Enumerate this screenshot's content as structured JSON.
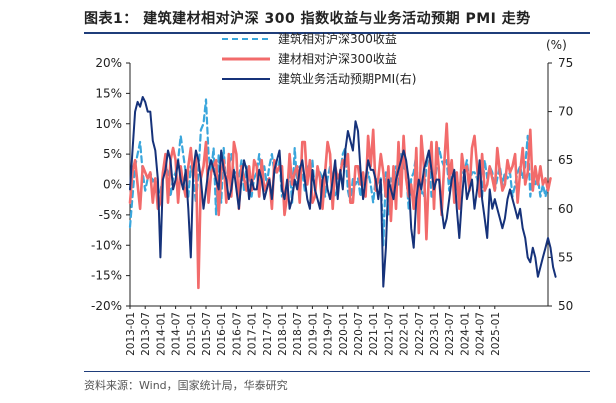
{
  "title": "图表1： 建筑建材相对沪深 300 指数收益与业务活动预期 PMI 走势",
  "source": "资料来源：Wind，国家统计局，华泰研究",
  "colors": {
    "hs300": "#3aa6dc",
    "jiancai": "#f26b6b",
    "pmi": "#16327a",
    "axis": "#222222",
    "rule": "#1f3d7a"
  },
  "chart_data": {
    "type": "line",
    "title": "建筑建材相对沪深 300 指数收益与业务活动预期 PMI 走势",
    "left_axis": {
      "ticks": [
        "20%",
        "15%",
        "10%",
        "5%",
        "0%",
        "-5%",
        "-10%",
        "-15%",
        "-20%"
      ],
      "ylim": [
        -0.2,
        0.2
      ]
    },
    "right_axis": {
      "label": "(%)",
      "ticks": [
        "75",
        "70",
        "65",
        "60",
        "55",
        "50"
      ],
      "ylim": [
        50,
        75
      ]
    },
    "x_labels": [
      "2013-01",
      "2013-07",
      "2014-01",
      "2014-07",
      "2015-01",
      "2015-07",
      "2016-01",
      "2016-07",
      "2017-01",
      "2017-07",
      "2018-01",
      "2018-07",
      "2019-01",
      "2019-07",
      "2020-01",
      "2020-07",
      "2021-01",
      "2021-07",
      "2022-01",
      "2022-07",
      "2023-01",
      "2023-07",
      "2024-01",
      "2024-07",
      "2025-01"
    ],
    "start_month": "2013-01",
    "legend": [
      "建筑相对沪深300收益",
      "建材相对沪深300收益",
      "建筑业务活动预期PMI(右)"
    ],
    "series": [
      {
        "name": "建筑相对沪深300收益",
        "axis": "left",
        "style": "dashed",
        "values": [
          -0.07,
          -0.02,
          0.03,
          0.05,
          0.07,
          0.02,
          -0.01,
          0.01,
          0.02,
          0.005,
          0.01,
          -0.02,
          -0.01,
          0.01,
          0.03,
          0.02,
          -0.02,
          0.01,
          0.02,
          0.04,
          0.08,
          0.05,
          0.02,
          -0.02,
          0.03,
          0.01,
          -0.03,
          0.02,
          0.09,
          0.1,
          0.14,
          0.05,
          0.02,
          0.06,
          -0.05,
          0.05,
          -0.03,
          0.06,
          -0.01,
          0.03,
          0.05,
          0.02,
          0.02,
          0.01,
          0.04,
          -0.01,
          0.03,
          0.02,
          -0.02,
          0.01,
          0.02,
          0.05,
          0.01,
          0.03,
          0.0,
          0.03,
          0.05,
          0.02,
          0.02,
          0.04,
          -0.02,
          -0.01,
          -0.02,
          0.03,
          -0.03,
          0.06,
          0.0,
          0.03,
          0.02,
          -0.01,
          0.03,
          0.02,
          0.04,
          -0.01,
          0.02,
          0.02,
          0.01,
          -0.02,
          0.01,
          0.03,
          0.01,
          -0.02,
          -0.01,
          0.02,
          0.05,
          0.06,
          -0.01,
          -0.03,
          0.01,
          0.0,
          0.01,
          -0.02,
          0.01,
          0.0,
          0.02,
          0.0,
          -0.03,
          0.01,
          0.0,
          0.01,
          -0.1,
          0.02,
          -0.05,
          0.01,
          -0.02,
          0.03,
          0.0,
          0.05,
          0.03,
          0.02,
          -0.04,
          0.01,
          0.02,
          0.05,
          -0.03,
          -0.01,
          -0.02,
          0.03,
          0.05,
          -0.02,
          -0.02,
          0.03,
          0.06,
          0.04,
          0.03,
          0.04,
          -0.01,
          0.03,
          0.02,
          0.01,
          -0.01,
          0.02,
          0.02,
          0.04,
          0.0,
          0.02,
          0.02,
          0.01,
          -0.01,
          -0.02,
          0.04,
          0.01,
          0.03,
          0.02,
          -0.01,
          0.01,
          0.03,
          0.0,
          0.02,
          0.01,
          0.02,
          -0.02,
          0.0,
          0.02,
          0.03,
          0.01,
          0.03,
          0.08,
          -0.02,
          0.02,
          0.0,
          0.01,
          -0.02,
          0.0,
          -0.02,
          0.0
        ]
      },
      {
        "name": "建材相对沪深300收益",
        "axis": "left",
        "style": "solid",
        "values": [
          -0.03,
          0.02,
          0.04,
          0.0,
          -0.04,
          0.03,
          0.02,
          0.01,
          0.02,
          -0.03,
          0.01,
          -0.04,
          -0.03,
          0.02,
          0.05,
          -0.03,
          0.04,
          0.06,
          0.04,
          -0.03,
          0.03,
          0.0,
          -0.02,
          0.03,
          0.06,
          0.01,
          0.05,
          -0.17,
          0.01,
          0.03,
          0.07,
          -0.03,
          0.02,
          0.03,
          0.04,
          -0.05,
          0.02,
          0.04,
          -0.03,
          0.05,
          -0.02,
          0.07,
          0.05,
          -0.04,
          0.03,
          0.01,
          -0.01,
          0.03,
          -0.01,
          0.04,
          0.03,
          -0.02,
          0.04,
          -0.01,
          0.0,
          0.01,
          -0.04,
          0.04,
          0.02,
          0.03,
          0.03,
          -0.05,
          -0.02,
          0.05,
          0.0,
          0.02,
          0.03,
          -0.03,
          0.07,
          0.07,
          0.0,
          0.04,
          -0.03,
          -0.02,
          0.03,
          0.01,
          -0.04,
          0.02,
          0.07,
          0.05,
          -0.04,
          0.03,
          0.01,
          0.02,
          0.04,
          0.03,
          0.05,
          -0.03,
          -0.03,
          0.03,
          0.03,
          0.0,
          0.02,
          -0.02,
          0.08,
          0.03,
          0.09,
          -0.01,
          0.01,
          0.05,
          0.02,
          -0.02,
          0.03,
          -0.06,
          0.03,
          -0.04,
          0.07,
          -0.02,
          0.08,
          0.01,
          -0.02,
          0.0,
          -0.04,
          0.06,
          -0.08,
          0.08,
          0.03,
          -0.09,
          0.02,
          0.07,
          -0.04,
          0.07,
          0.02,
          -0.05,
          0.03,
          0.1,
          0.01,
          0.04,
          -0.03,
          0.02,
          -0.04,
          0.05,
          0.02,
          0.03,
          -0.01,
          0.06,
          0.08,
          0.03,
          -0.02,
          0.05,
          -0.01,
          0.0,
          0.03,
          0.01,
          -0.01,
          0.06,
          0.02,
          -0.01,
          0.0,
          0.04,
          0.02,
          0.03,
          0.05,
          -0.03,
          0.02,
          0.06,
          0.0,
          0.02,
          0.09,
          -0.01,
          0.03,
          0.0,
          0.03,
          0.0,
          0.01,
          -0.01,
          0.01
        ]
      },
      {
        "name": "建筑业务活动预期PMI(右)",
        "axis": "right",
        "style": "solid",
        "values": [
          62.0,
          66.0,
          70.0,
          71.0,
          70.5,
          71.5,
          71.0,
          70.0,
          70.0,
          67.0,
          66.0,
          63.0,
          55.0,
          63.0,
          64.0,
          66.0,
          65.0,
          62.0,
          63.0,
          65.0,
          63.0,
          62.0,
          64.0,
          60.0,
          55.0,
          64.0,
          66.0,
          65.0,
          63.0,
          60.0,
          62.0,
          64.0,
          65.0,
          64.0,
          63.0,
          62.0,
          66.0,
          64.0,
          63.0,
          61.0,
          62.0,
          64.0,
          62.0,
          60.0,
          63.0,
          65.0,
          64.0,
          61.0,
          63.0,
          62.0,
          62.0,
          64.0,
          63.0,
          61.0,
          62.0,
          63.0,
          61.0,
          64.0,
          65.0,
          66.0,
          62.0,
          61.0,
          63.0,
          60.0,
          61.0,
          63.0,
          62.0,
          64.0,
          65.0,
          63.0,
          61.0,
          60.0,
          64.0,
          62.0,
          61.0,
          60.0,
          63.0,
          64.0,
          62.0,
          61.0,
          63.0,
          65.0,
          61.0,
          64.0,
          62.0,
          66.0,
          68.0,
          67.0,
          66.0,
          69.0,
          68.0,
          64.0,
          61.0,
          63.0,
          65.0,
          64.0,
          64.0,
          63.0,
          61.0,
          63.0,
          52.0,
          56.0,
          63.0,
          62.0,
          61.0,
          63.0,
          64.0,
          65.0,
          66.0,
          65.0,
          63.0,
          58.0,
          56.0,
          61.0,
          63.0,
          62.0,
          64.0,
          65.0,
          66.0,
          64.0,
          62.0,
          63.0,
          63.0,
          60.0,
          58.0,
          59.0,
          61.0,
          63.0,
          64.0,
          60.0,
          57.0,
          61.0,
          64.0,
          61.0,
          62.0,
          63.0,
          60.0,
          62.0,
          65.0,
          61.0,
          59.0,
          57.0,
          62.0,
          60.0,
          61.0,
          60.0,
          59.0,
          58.0,
          59.0,
          61.0,
          62.0,
          61.0,
          60.0,
          59.0,
          60.0,
          58.0,
          57.0,
          55.0,
          54.5,
          56.0,
          55.0,
          53.0,
          54.0,
          55.0,
          56.0,
          57.0,
          56.0,
          54.0,
          53.0
        ]
      }
    ]
  }
}
